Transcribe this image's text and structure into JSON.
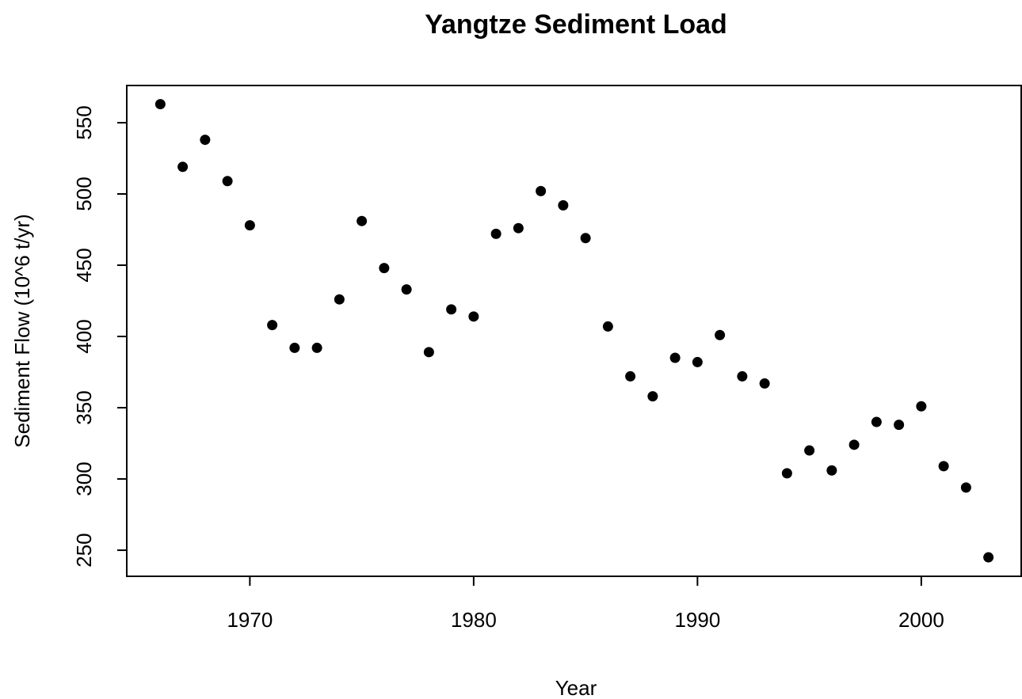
{
  "chart_data": {
    "type": "scatter",
    "title": "Yangtze Sediment Load",
    "x_label": "Year",
    "y_label": "Sediment Flow (10^6 t/yr)",
    "color": "#000000",
    "series": [
      {
        "name": "Sediment",
        "color": "#000000",
        "x": [
          1966,
          1967,
          1968,
          1969,
          1970,
          1971,
          1972,
          1973,
          1974,
          1975,
          1976,
          1977,
          1978,
          1979,
          1980,
          1981,
          1982,
          1983,
          1984,
          1985,
          1986,
          1987,
          1988,
          1989,
          1990,
          1991,
          1992,
          1993,
          1994,
          1995,
          1996,
          1997,
          1998,
          1999,
          2000,
          2001,
          2002,
          2003
        ],
        "values": [
          563,
          519,
          538,
          509,
          478,
          408,
          392,
          392,
          426,
          481,
          448,
          433,
          389,
          419,
          414,
          472,
          476,
          502,
          492,
          469,
          407,
          372,
          358,
          385,
          382,
          401,
          372,
          367,
          304,
          320,
          306,
          324,
          340,
          338,
          351,
          309,
          294,
          245
        ]
      }
    ],
    "xlim": [
      1964.5,
      2004.5
    ],
    "ylim": [
      231.7,
      576.1
    ],
    "xticks": [
      1970,
      1980,
      1990,
      2000
    ],
    "yticks": [
      250,
      300,
      350,
      400,
      450,
      500,
      550
    ],
    "grid": false
  }
}
